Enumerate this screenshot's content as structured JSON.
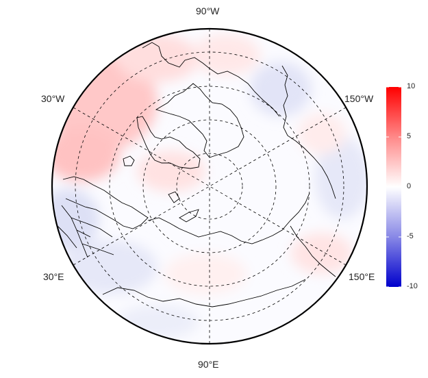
{
  "lon_labels": {
    "top": "90°W",
    "bottom": "90°E",
    "upper_left": "30°W",
    "upper_right": "150°W",
    "lower_left": "30°E",
    "lower_right": "150°E"
  },
  "colorbar": {
    "ticks": [
      "10",
      "5",
      "0",
      "-5",
      "-10"
    ],
    "min": -10,
    "max": 10,
    "colors": {
      "high": "#ff0000",
      "mid": "#ffffff",
      "low": "#0000cc"
    }
  },
  "map": {
    "projection": "north polar stereographic",
    "graticule_style": "dashed",
    "outline_color": "#000000"
  }
}
